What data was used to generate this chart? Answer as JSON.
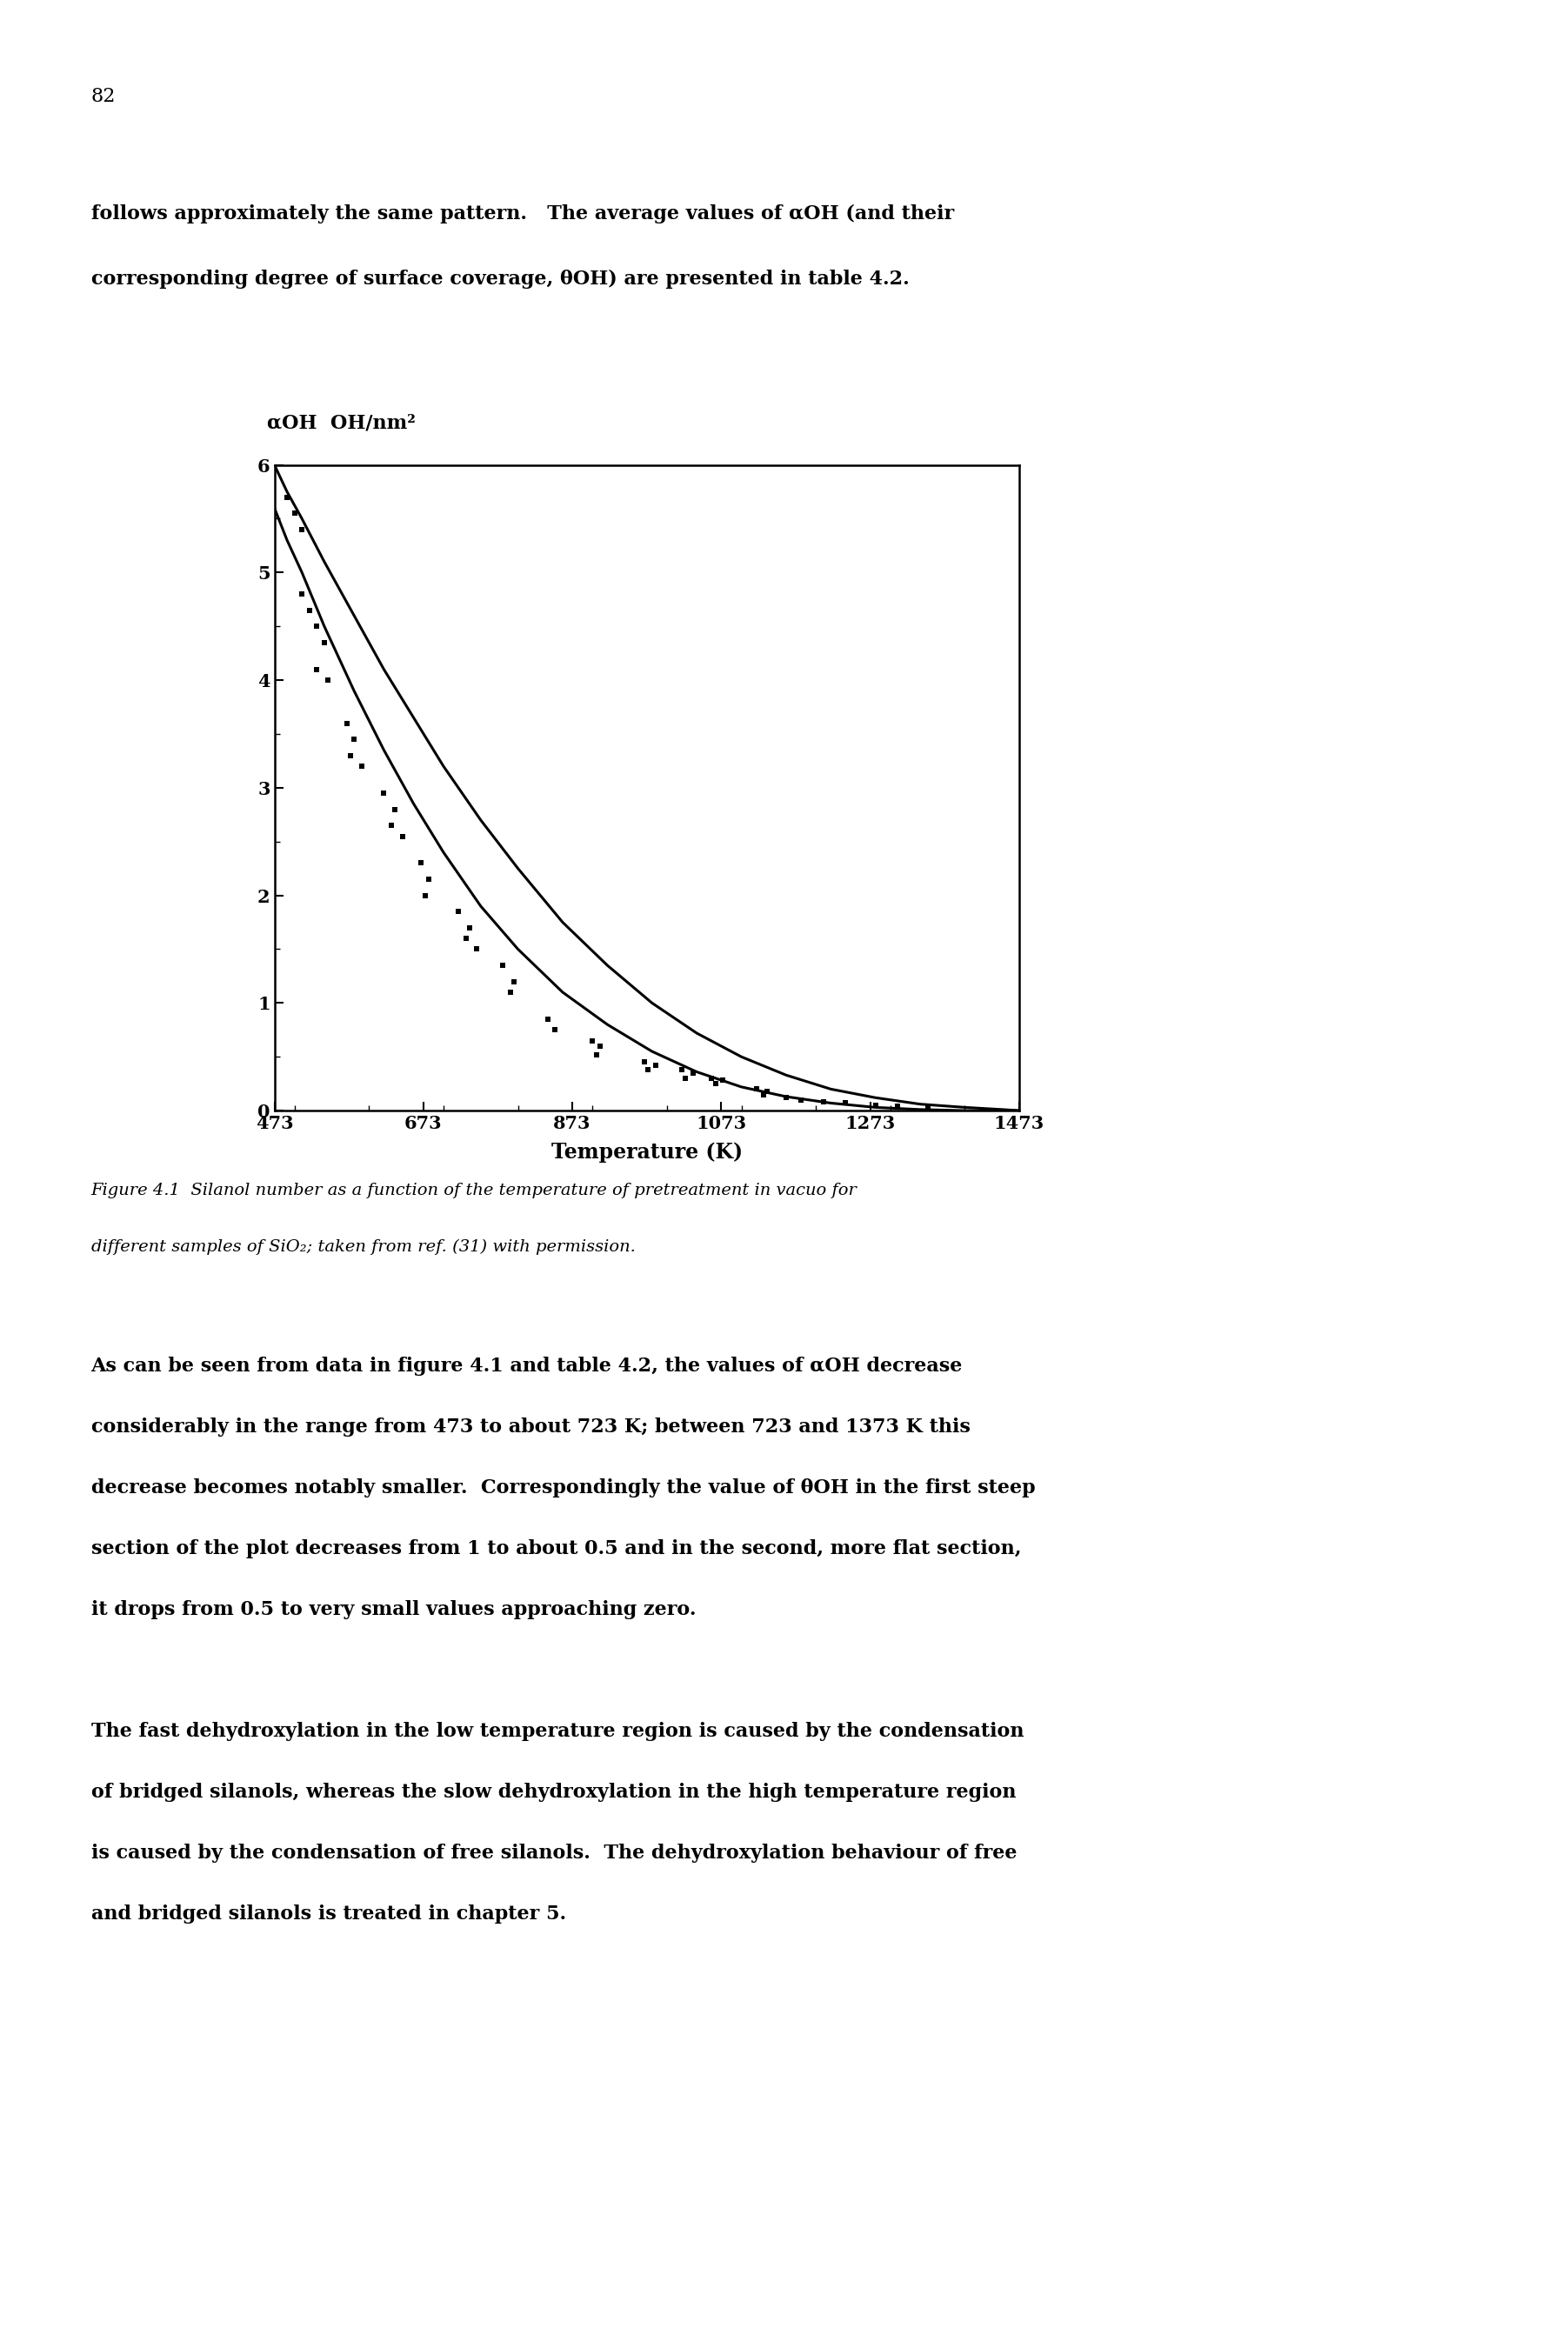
{
  "page_number": "82",
  "para1_line1": "follows approximately the same pattern.   The average values of αOH (and their",
  "para1_line2": "corresponding degree of surface coverage, θOH) are presented in table 4.2.",
  "ylabel": "αOH  OH/nm²",
  "xlabel": "Temperature (K)",
  "xlim": [
    473,
    1473
  ],
  "ylim": [
    0,
    6
  ],
  "xticks": [
    473,
    673,
    873,
    1073,
    1273,
    1473
  ],
  "yticks": [
    0,
    1,
    2,
    3,
    4,
    5,
    6
  ],
  "curve1_x": [
    473,
    490,
    510,
    540,
    580,
    620,
    660,
    700,
    750,
    800,
    860,
    920,
    980,
    1040,
    1100,
    1160,
    1220,
    1280,
    1340,
    1400,
    1450,
    1473
  ],
  "curve1_y": [
    6.0,
    5.75,
    5.5,
    5.1,
    4.6,
    4.1,
    3.65,
    3.2,
    2.7,
    2.25,
    1.75,
    1.35,
    1.0,
    0.72,
    0.5,
    0.33,
    0.2,
    0.12,
    0.06,
    0.03,
    0.01,
    0.0
  ],
  "curve2_x": [
    473,
    490,
    510,
    540,
    580,
    620,
    660,
    700,
    750,
    800,
    860,
    920,
    980,
    1040,
    1100,
    1160,
    1220,
    1280,
    1340,
    1400,
    1450,
    1473
  ],
  "curve2_y": [
    5.6,
    5.3,
    5.0,
    4.5,
    3.9,
    3.35,
    2.85,
    2.4,
    1.9,
    1.5,
    1.1,
    0.8,
    0.55,
    0.36,
    0.22,
    0.13,
    0.07,
    0.03,
    0.01,
    0.0,
    0.0,
    0.0
  ],
  "dots": [
    [
      490,
      5.7
    ],
    [
      500,
      5.55
    ],
    [
      510,
      5.4
    ],
    [
      510,
      4.8
    ],
    [
      520,
      4.65
    ],
    [
      530,
      4.5
    ],
    [
      540,
      4.35
    ],
    [
      530,
      4.1
    ],
    [
      545,
      4.0
    ],
    [
      570,
      3.6
    ],
    [
      580,
      3.45
    ],
    [
      575,
      3.3
    ],
    [
      590,
      3.2
    ],
    [
      620,
      2.95
    ],
    [
      635,
      2.8
    ],
    [
      630,
      2.65
    ],
    [
      645,
      2.55
    ],
    [
      670,
      2.3
    ],
    [
      680,
      2.15
    ],
    [
      675,
      2.0
    ],
    [
      720,
      1.85
    ],
    [
      735,
      1.7
    ],
    [
      730,
      1.6
    ],
    [
      745,
      1.5
    ],
    [
      780,
      1.35
    ],
    [
      795,
      1.2
    ],
    [
      790,
      1.1
    ],
    [
      840,
      0.85
    ],
    [
      850,
      0.75
    ],
    [
      900,
      0.65
    ],
    [
      910,
      0.6
    ],
    [
      905,
      0.52
    ],
    [
      970,
      0.45
    ],
    [
      985,
      0.42
    ],
    [
      975,
      0.38
    ],
    [
      1020,
      0.38
    ],
    [
      1035,
      0.35
    ],
    [
      1025,
      0.3
    ],
    [
      1060,
      0.3
    ],
    [
      1075,
      0.28
    ],
    [
      1065,
      0.25
    ],
    [
      1120,
      0.2
    ],
    [
      1135,
      0.18
    ],
    [
      1130,
      0.15
    ],
    [
      1160,
      0.12
    ],
    [
      1180,
      0.1
    ],
    [
      1210,
      0.08
    ],
    [
      1240,
      0.07
    ],
    [
      1280,
      0.05
    ],
    [
      1310,
      0.04
    ],
    [
      1350,
      0.03
    ]
  ],
  "fig_caption_line1": "Figure 4.1  Silanol number as a function of the temperature of pretreatment in vacuo for",
  "fig_caption_line2": "different samples of SiO₂; taken from ref. (31) with permission.",
  "para2_lines": [
    "As can be seen from data in figure 4.1 and table 4.2, the values of αOH decrease",
    "considerably in the range from 473 to about 723 K; between 723 and 1373 K this",
    "decrease becomes notably smaller.  Correspondingly the value of θOH in the first steep",
    "section of the plot decreases from 1 to about 0.5 and in the second, more flat section,",
    "it drops from 0.5 to very small values approaching zero."
  ],
  "para3_lines": [
    "The fast dehydroxylation in the low temperature region is caused by the condensation",
    "of bridged silanols, whereas the slow dehydroxylation in the high temperature region",
    "is caused by the condensation of free silanols.  The dehydroxylation behaviour of free",
    "and bridged silanols is treated in chapter 5."
  ],
  "background_color": "#ffffff",
  "text_color": "#000000"
}
